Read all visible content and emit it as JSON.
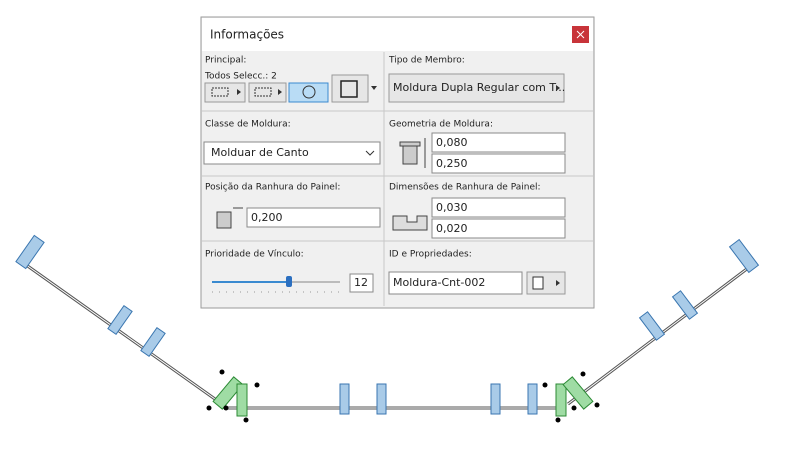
{
  "dialog": {
    "title": "Informações",
    "principal": {
      "label": "Principal:",
      "selection": "Todos Selecc.: 2"
    },
    "member_type": {
      "label": "Tipo de Membro:",
      "value": "Moldura Dupla Regular com T..."
    },
    "frame_class": {
      "label": "Classe de Moldura:",
      "value": "Molduar de Canto"
    },
    "frame_geometry": {
      "label": "Geometria de Moldura:",
      "width": "0,080",
      "depth": "0,250"
    },
    "panel_slot_position": {
      "label": "Posição da Ranhura do Painel:",
      "value": "0,200"
    },
    "panel_slot_size": {
      "label": "Dimensões de Ranhura de Painel:",
      "width": "0,030",
      "depth": "0,020"
    },
    "link_priority": {
      "label": "Prioridade de Vínculo:",
      "value": "12"
    },
    "id_properties": {
      "label": "ID e Propriedades:",
      "value": "Moldura-Cnt-002"
    }
  }
}
